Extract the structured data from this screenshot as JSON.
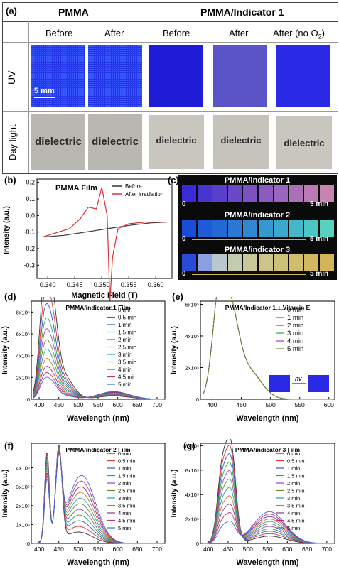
{
  "panel_a": {
    "label": "(a)",
    "group_left": "PMMA",
    "group_right": "PMMA/Indicator 1",
    "cols": [
      "Before",
      "After",
      "Before",
      "After",
      "After (no O"
    ],
    "o2_sub": "2",
    "o2_close": ")",
    "row_uv": "UV",
    "row_day": "Day light",
    "scale": "5 mm",
    "dielectric": "dielectric",
    "colors": {
      "uv_left": "#2336e8",
      "uv_right_before": "#1f1cd8",
      "uv_right_after": "#5a54c8",
      "uv_right_noO2": "#2a2ae6"
    }
  },
  "panel_b": {
    "label": "(b)",
    "title": "PMMA Film",
    "legend": [
      "Before",
      "After irradiation"
    ],
    "ylabel": "Intensity (a.u.)",
    "xlabel": "Magnetic Field (T)",
    "chart_data": {
      "type": "line",
      "xlim": [
        0.338,
        0.363
      ],
      "ylim": [
        -0.38,
        0.22
      ],
      "xticks": [
        "0.340",
        "0.345",
        "0.350",
        "0.355",
        "0.360"
      ],
      "yticks": [
        "0.2",
        "0.1",
        "0.0",
        "-0.1",
        "-0.2",
        "-0.3"
      ],
      "series": [
        {
          "name": "Before",
          "color": "#333333",
          "x": [
            0.339,
            0.343,
            0.347,
            0.351,
            0.355,
            0.359,
            0.362
          ],
          "y": [
            -0.13,
            -0.12,
            -0.1,
            -0.08,
            -0.06,
            -0.045,
            -0.04
          ]
        },
        {
          "name": "After irradiation",
          "color": "#e03030",
          "x": [
            0.339,
            0.344,
            0.346,
            0.3475,
            0.349,
            0.35,
            0.351,
            0.3515,
            0.352,
            0.353,
            0.355,
            0.358,
            0.362
          ],
          "y": [
            -0.13,
            -0.08,
            -0.02,
            0.05,
            0.04,
            0.17,
            0.0,
            -0.52,
            -0.25,
            -0.08,
            -0.05,
            -0.04,
            -0.04
          ]
        }
      ]
    }
  },
  "panel_c": {
    "label": "(c)",
    "strips": [
      {
        "title": "PMMA/indicator 1",
        "start": "0",
        "end": "5 min",
        "colors": [
          "#3a2ad8",
          "#4a34d0",
          "#5a3ecc",
          "#6a48c8",
          "#7a52c4",
          "#8a5cc0",
          "#9a66bc",
          "#aa70b8",
          "#ba7ab4",
          "#c884b0"
        ]
      },
      {
        "title": "PMMA/indicator 2",
        "start": "0",
        "end": "5 min",
        "colors": [
          "#1a4cd8",
          "#1f5ad8",
          "#2468d6",
          "#2a78d4",
          "#3088d2",
          "#3698d0",
          "#3ca8cc",
          "#44b8c8",
          "#4cc6c4",
          "#58d2c0"
        ]
      },
      {
        "title": "PMMA/indicator 3",
        "start": "0",
        "end": "5 min",
        "colors": [
          "#2a4ad8",
          "#8aa0e0",
          "#b8c8cc",
          "#c4ccb0",
          "#c8c898",
          "#ccc488",
          "#cec078",
          "#d0bc6c",
          "#d2b860",
          "#d4b458"
        ]
      }
    ]
  },
  "panel_d": {
    "label": "(d)",
    "title": "PMMA/indicator 1  Film",
    "ylabel": "Intensity (a.u.)",
    "xlabel": "Wavelength (nm)",
    "xticks": [
      "400",
      "450",
      "500",
      "550",
      "600",
      "650",
      "700"
    ],
    "yticks": [
      "8x10⁵",
      "6x10⁵",
      "4x10⁵",
      "2x10⁵",
      "0"
    ],
    "legend": [
      "0 min",
      "0.5 min",
      "1 min",
      "1.5 min",
      "2 min",
      "2.5 min",
      "3 min",
      "3.5 min",
      "4 min",
      "4.5 min",
      "5 min"
    ],
    "chart_data": {
      "type": "line",
      "xlim": [
        380,
        720
      ],
      "ylim": [
        0,
        900000
      ],
      "peak_wavelengths": [
        410,
        430
      ],
      "peak_intensity_by_series": [
        880000,
        720000,
        610000,
        520000,
        450000,
        380000,
        320000,
        260000,
        210000,
        170000,
        140000
      ]
    }
  },
  "panel_e": {
    "label": "(e)",
    "title": "PMMA/Indicator 1 + Vitamin E",
    "ylabel": "Intensity (a.u.)",
    "xlabel": "Wavelength (nm)",
    "xticks": [
      "400",
      "450",
      "500",
      "550",
      "600"
    ],
    "yticks": [
      "6x10⁵",
      "4x10⁵",
      "2x10⁵",
      "0"
    ],
    "legend": [
      "0 min",
      "1 min",
      "2 min",
      "3 min",
      "4 min",
      "5 min"
    ],
    "hv": "hv",
    "chart_data": {
      "type": "line",
      "xlim": [
        380,
        610
      ],
      "ylim": [
        0,
        620000
      ],
      "peaks": [
        [
          410,
          560000
        ],
        [
          430,
          545000
        ]
      ]
    }
  },
  "panel_f": {
    "label": "(f)",
    "title": "PMMA/indicator 2  Film",
    "ylabel": "Intensity (a.u.)",
    "xlabel": "Wavelength (nm)",
    "xticks": [
      "400",
      "450",
      "500",
      "550",
      "600",
      "650",
      "700"
    ],
    "yticks": [
      "4x10⁵",
      "3x10⁵",
      "2x10⁵",
      "1x10⁵",
      "0"
    ],
    "legend": [
      "0 min",
      "0.5 min",
      "1 min",
      "1.5 min",
      "2 min",
      "2.5 min",
      "3 min",
      "3.5 min",
      "4 min",
      "4.5 min",
      "5 min"
    ],
    "chart_data": {
      "type": "line",
      "xlim": [
        380,
        720
      ],
      "ylim": [
        0,
        530000
      ]
    }
  },
  "panel_g": {
    "label": "(g)",
    "title": "PMMA/indicator 3  Film",
    "ylabel": "Intensity (a.u.)",
    "xlabel": "Wavelength (nm)",
    "xticks": [
      "400",
      "450",
      "500",
      "550",
      "600",
      "650",
      "700"
    ],
    "yticks": [
      "8x10⁵",
      "6x10⁵",
      "4x10⁵",
      "2x10⁵",
      "0"
    ],
    "legend": [
      "0 min",
      "0.5 min",
      "1 min",
      "1.5 min",
      "2 min",
      "2.5 min",
      "3 min",
      "3.5 min",
      "4 min",
      "4.5 min",
      "5 min"
    ],
    "chart_data": {
      "type": "line",
      "xlim": [
        380,
        720
      ],
      "ylim": [
        0,
        820000
      ]
    }
  },
  "series_colors": [
    "#333333",
    "#e03030",
    "#2c58d8",
    "#2aa84a",
    "#a040c0",
    "#6a8a2a",
    "#1aa0b8",
    "#e07020",
    "#7a3a9a",
    "#c03070",
    "#3a6ad8"
  ]
}
